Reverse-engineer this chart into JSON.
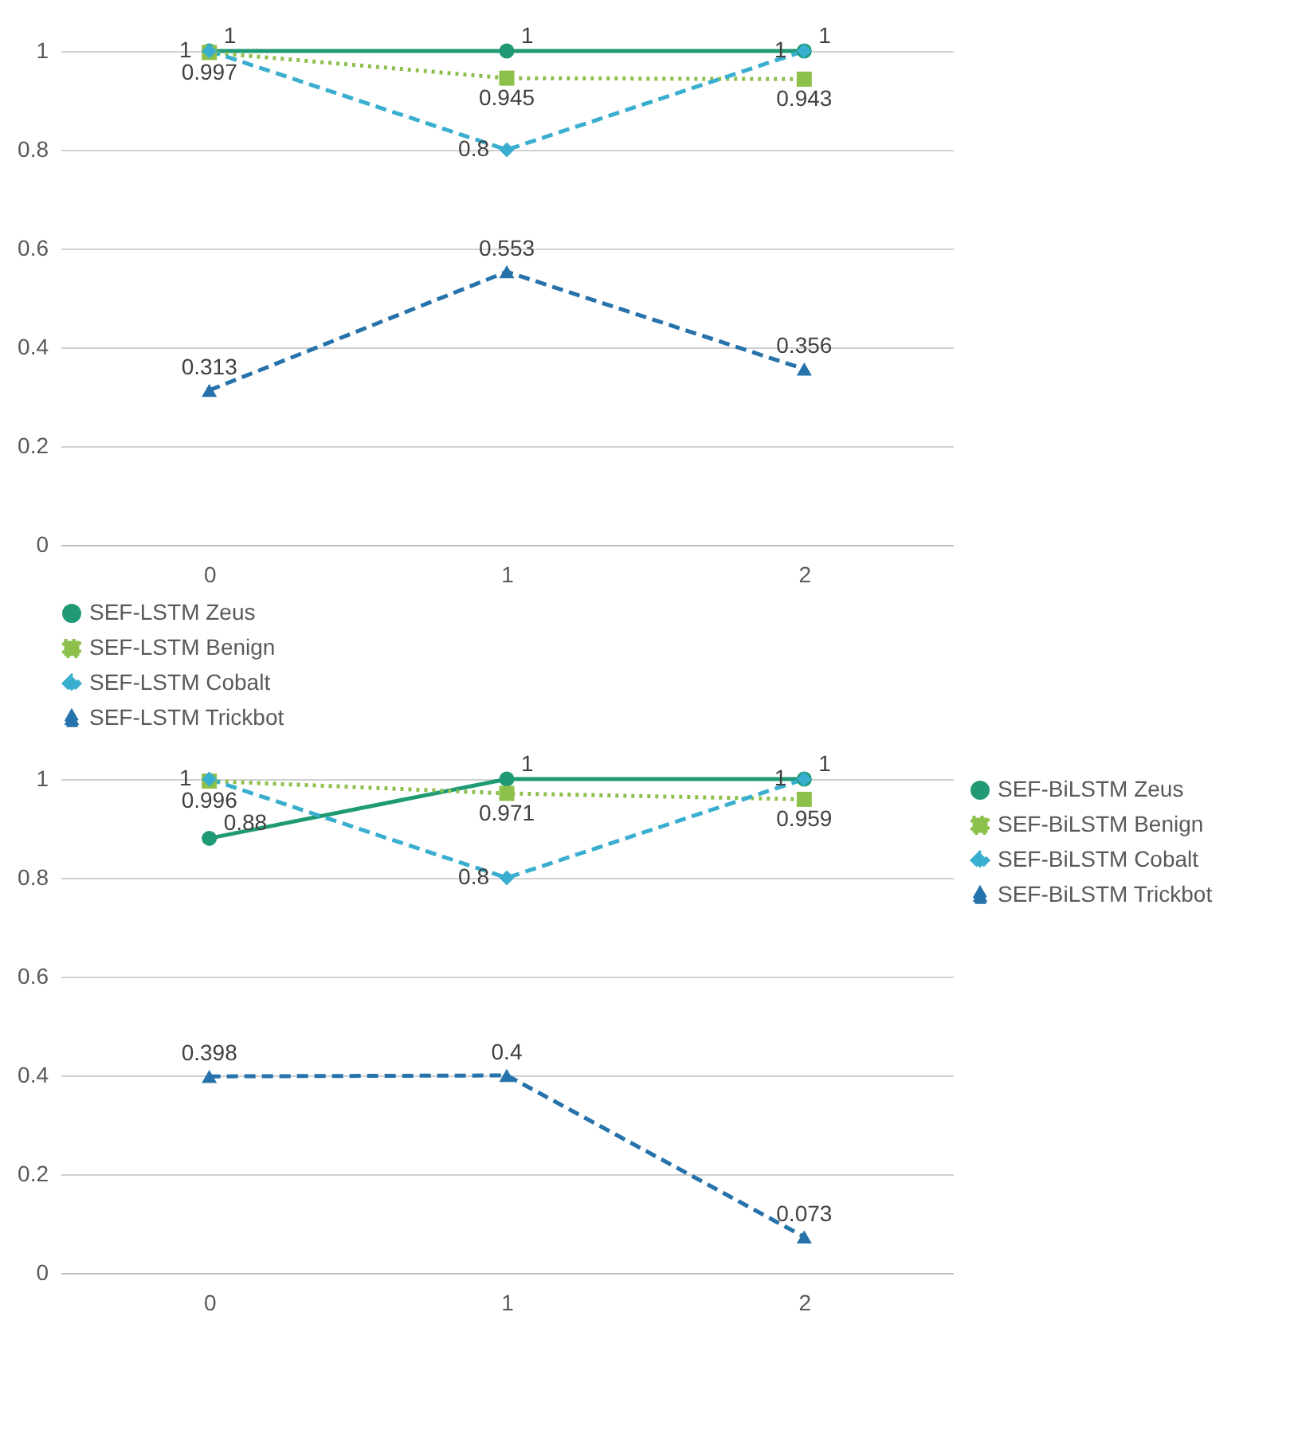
{
  "chart_data": [
    {
      "type": "line",
      "categories": [
        "0",
        "1",
        "2"
      ],
      "ylim": [
        0,
        1
      ],
      "yticks": [
        0,
        0.2,
        0.4,
        0.6,
        0.8,
        1
      ],
      "grid": "y",
      "legend": "bottom",
      "data_labels": true,
      "series": [
        {
          "name": "SEF-LSTM Zeus",
          "color": "#1f9a74",
          "marker": "circle",
          "line_style": "solid",
          "values": [
            1,
            1,
            1
          ]
        },
        {
          "name": "SEF-LSTM Benign",
          "color": "#8cc04b",
          "marker": "square",
          "line_style": "dotted",
          "values": [
            0.997,
            0.945,
            0.943
          ]
        },
        {
          "name": "SEF-LSTM Cobalt",
          "color": "#3aaecf",
          "marker": "diamond",
          "line_style": "dashed",
          "values": [
            1,
            0.8,
            1
          ]
        },
        {
          "name": "SEF-LSTM Trickbot",
          "color": "#2672ab",
          "marker": "triangle",
          "line_style": "dashed",
          "values": [
            0.313,
            0.553,
            0.356
          ]
        }
      ]
    },
    {
      "type": "line",
      "categories": [
        "0",
        "1",
        "2"
      ],
      "ylim": [
        0,
        1
      ],
      "yticks": [
        0,
        0.2,
        0.4,
        0.6,
        0.8,
        1
      ],
      "grid": "y",
      "legend": "right",
      "data_labels": true,
      "series": [
        {
          "name": "SEF-BiLSTM Zeus",
          "color": "#1f9a74",
          "marker": "circle",
          "line_style": "solid",
          "values": [
            0.88,
            1,
            1
          ]
        },
        {
          "name": "SEF-BiLSTM Benign",
          "color": "#8cc04b",
          "marker": "square",
          "line_style": "dotted",
          "values": [
            0.996,
            0.971,
            0.959
          ]
        },
        {
          "name": "SEF-BiLSTM Cobalt",
          "color": "#3aaecf",
          "marker": "diamond",
          "line_style": "dashed",
          "values": [
            1,
            0.8,
            1
          ]
        },
        {
          "name": "SEF-BiLSTM Trickbot",
          "color": "#2672ab",
          "marker": "triangle",
          "line_style": "dashed",
          "values": [
            0.398,
            0.4,
            0.073
          ]
        }
      ]
    }
  ]
}
